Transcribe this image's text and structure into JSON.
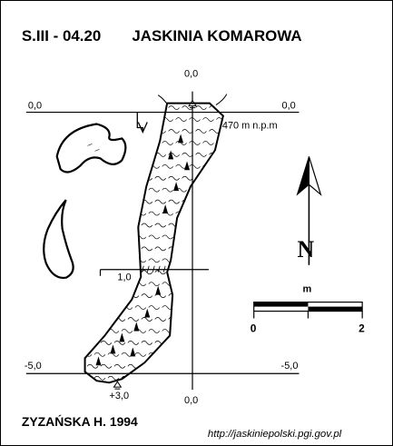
{
  "header": {
    "code": "S.III - 04.20",
    "name": "JASKINIA KOMAROWA"
  },
  "section_labels": {
    "top_left": "0,0",
    "top_right": "0,0",
    "top_center": "0,0",
    "bottom_left": "-5,0",
    "bottom_right": "-5,0",
    "bottom_center": "0,0"
  },
  "annotations": {
    "elevation": "470 m n.p.m",
    "cross_section": "1,0",
    "depth_marker": "+3,0"
  },
  "north_arrow": {
    "letter": "N",
    "icon": "north-arrow-icon"
  },
  "scale_bar": {
    "unit": "m",
    "min_label": "0",
    "max_label": "2"
  },
  "footer": {
    "author": "ZYZAŃSKA H. 1994",
    "source": "http://jaskiniepolski.pgi.gov.pl"
  }
}
